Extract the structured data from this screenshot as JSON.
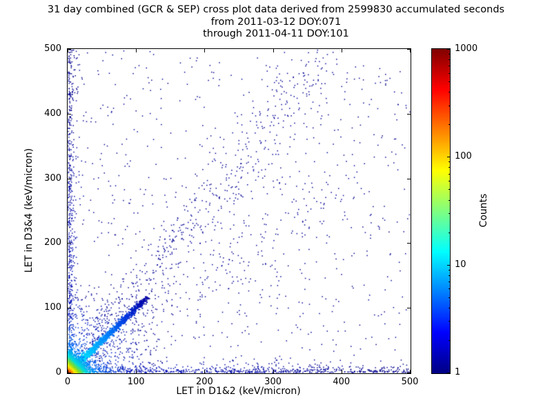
{
  "title": {
    "line1": "31 day combined (GCR & SEP) cross plot data derived from 2599830 accumulated seconds",
    "line2": "from 2011-03-12 DOY:071",
    "line3": "through 2011-04-11 DOY:101"
  },
  "chart_data": {
    "type": "scatter",
    "title": "31 day combined (GCR & SEP) cross plot data derived from 2599830 accumulated seconds from 2011-03-12 DOY:071 through 2011-04-11 DOY:101",
    "xlabel": "LET in D1&2 (keV/micron)",
    "ylabel": "LET in D3&4 (keV/micron)",
    "xlim": [
      0,
      500
    ],
    "ylim": [
      0,
      500
    ],
    "xticks": [
      0,
      100,
      200,
      300,
      400,
      500
    ],
    "yticks": [
      0,
      100,
      200,
      300,
      400,
      500
    ],
    "grid": false,
    "legend": "none",
    "colorbar": {
      "label": "Counts",
      "scale": "log",
      "range": [
        1,
        1000
      ],
      "ticks": [
        1,
        10,
        100,
        1000
      ],
      "colormap": "jet",
      "gradient_stops": [
        {
          "pos": 0.0,
          "color": "#000083"
        },
        {
          "pos": 0.125,
          "color": "#0000ff"
        },
        {
          "pos": 0.375,
          "color": "#00ffff"
        },
        {
          "pos": 0.625,
          "color": "#ffff00"
        },
        {
          "pos": 0.875,
          "color": "#ff0000"
        },
        {
          "pos": 1.0,
          "color": "#800000"
        }
      ]
    },
    "distribution": {
      "description": "2D histogram scatter: very dense hot (red/yellow/green) core at origin, bright cyan diagonal streak y=x up to ~110 keV/micron, dense blue ridges hugging both axes, diffuse blue band above the diagonal (slope ~1.3) reaching (380,495), fainter band below diagonal, sparse dark-blue single counts everywhere.",
      "seed": 20110312,
      "clusters": [
        {
          "name": "sparse-background",
          "type": "uniform",
          "count": 700,
          "size": 1.5,
          "color": "#000090"
        },
        {
          "name": "upper-diagonal-band",
          "type": "band",
          "count": 480,
          "x0": 20,
          "x1": 380,
          "power": 1.1,
          "slope": 1.3,
          "spread0": 10,
          "spread_k": 0.1,
          "size": 1.5,
          "color": "#000095"
        },
        {
          "name": "lower-diagonal-band",
          "type": "band",
          "count": 260,
          "x0": 30,
          "x1": 420,
          "power": 1.2,
          "slope": 0.72,
          "spread0": 10,
          "spread_k": 0.1,
          "size": 1.5,
          "color": "#000095"
        },
        {
          "name": "x-axis-ridge",
          "type": "ridge_x",
          "count": 700,
          "range": 500,
          "power": 1.15,
          "scale": 4,
          "size": 1.5,
          "ramp": [
            [
              0,
              "#00cccc"
            ],
            [
              30,
              "#0077ee"
            ],
            [
              90,
              "#0011bb"
            ],
            [
              500,
              "#000088"
            ]
          ]
        },
        {
          "name": "y-axis-ridge",
          "type": "ridge_y",
          "count": 600,
          "range": 500,
          "power": 1.3,
          "scale": 4,
          "size": 1.5,
          "ramp": [
            [
              0,
              "#00cccc"
            ],
            [
              30,
              "#0077ee"
            ],
            [
              90,
              "#0011bb"
            ],
            [
              500,
              "#000088"
            ]
          ]
        },
        {
          "name": "origin-fan",
          "type": "fan",
          "count": 800,
          "radius": 140,
          "power": 2.0,
          "angle_min": 3,
          "angle_max": 87,
          "size": 1.5,
          "ramp": [
            [
              0,
              "#00dddd"
            ],
            [
              25,
              "#0088ff"
            ],
            [
              60,
              "#0022cc"
            ],
            [
              140,
              "#000088"
            ]
          ]
        },
        {
          "name": "diagonal-streak",
          "type": "line",
          "count": 1300,
          "length": 115,
          "power": 1.6,
          "spread": 2.2,
          "size": 2,
          "ramp": [
            [
              0,
              "#00ffee"
            ],
            [
              25,
              "#00d5ff"
            ],
            [
              55,
              "#0088ff"
            ],
            [
              85,
              "#0033dd"
            ],
            [
              115,
              "#0000a0"
            ]
          ]
        },
        {
          "name": "origin-hot-core",
          "type": "biexp",
          "count": 2800,
          "scale": 7,
          "size": 2,
          "ramp": [
            [
              0,
              "#cc1100"
            ],
            [
              5,
              "#ff7700"
            ],
            [
              10,
              "#ffee00"
            ],
            [
              17,
              "#88dd22"
            ],
            [
              26,
              "#00dddd"
            ],
            [
              45,
              "#0077ff"
            ],
            [
              80,
              "#0000cc"
            ],
            [
              400,
              "#000088"
            ]
          ]
        }
      ]
    }
  }
}
